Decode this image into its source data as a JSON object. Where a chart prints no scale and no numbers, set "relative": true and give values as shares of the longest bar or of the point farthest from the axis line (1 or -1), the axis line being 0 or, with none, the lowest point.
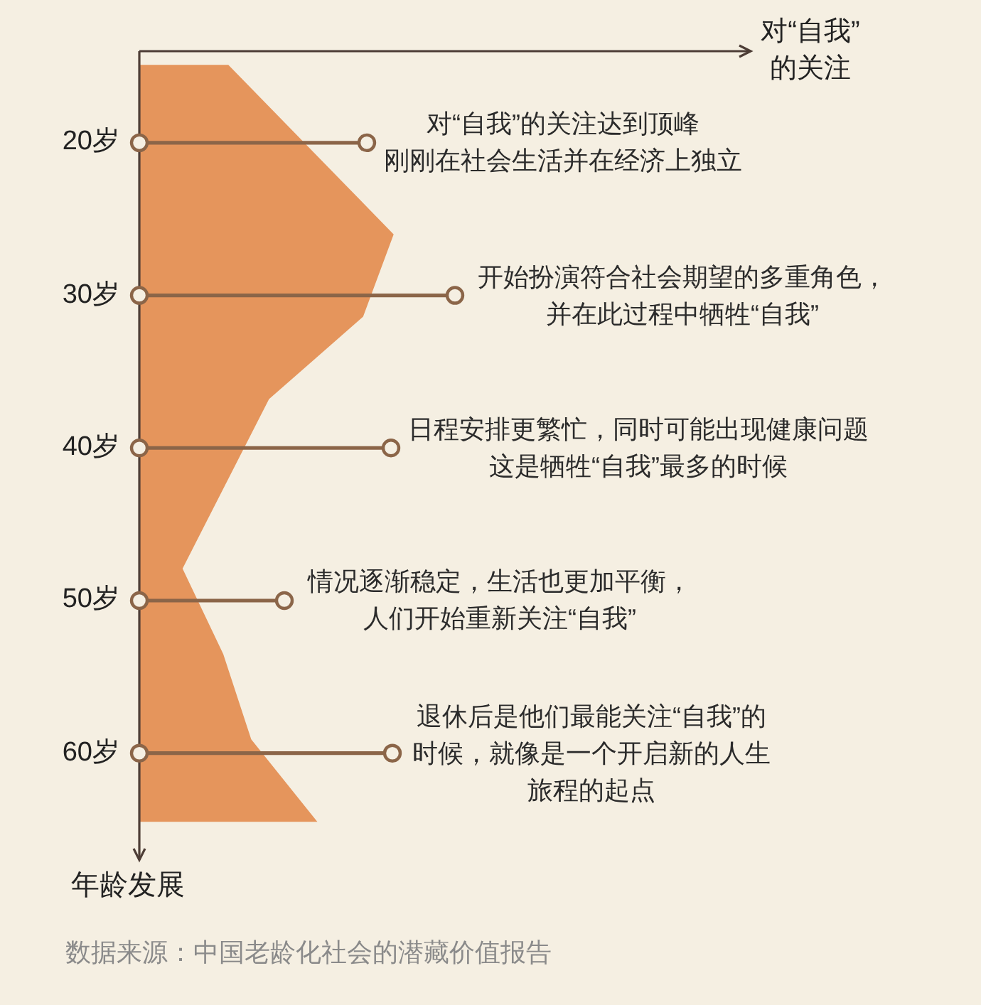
{
  "chart_data": {
    "type": "area",
    "orientation": "horizontal",
    "relative": true,
    "ylabel": "年龄发展",
    "ylim": [
      67,
      14
    ],
    "yticks": [
      {
        "value": 20,
        "label": "20岁"
      },
      {
        "value": 30,
        "label": "30岁"
      },
      {
        "value": 40,
        "label": "40岁"
      },
      {
        "value": 50,
        "label": "50岁"
      },
      {
        "value": 60,
        "label": "60岁"
      }
    ],
    "grid": "y",
    "x": [
      14.9,
      26.0,
      31.4,
      36.8,
      47.9,
      53.5,
      59.1,
      64.5
    ],
    "values": [
      0.35,
      1.0,
      0.88,
      0.51,
      0.17,
      0.33,
      0.44,
      0.7
    ],
    "color": "#e5955c",
    "annotations": [
      "对“自我”的关注",
      "对“自我”的关注达到顶峰",
      "刚刚在社会生活并在经济上独立",
      "开始扮演符合社会期望的多重角色，并在此过程中牺牲“自我”",
      "日程安排更繁忙，同时可能出现健康问题",
      "这是牺牲“自我”最多的时候",
      "情况逐渐稳定，生活也更加平衡，人们开始重新关注“自我”",
      "退休后是他们最能关注“自我”的时候，就像是一个开启新的人生旅程的起点",
      "数据来源：中国老龄化社会的潜藏价值报告"
    ]
  }
}
